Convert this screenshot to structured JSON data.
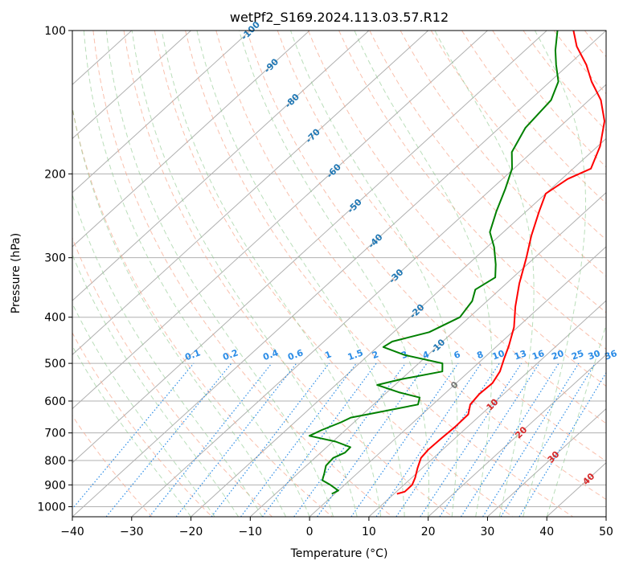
{
  "chart_data": {
    "type": "line",
    "subtype": "skew-t log-p",
    "title": "wetPf2_S169.2024.113.03.57.R12",
    "xlabel": "Temperature (°C)",
    "ylabel": "Pressure (hPa)",
    "xlim": [
      -40,
      50
    ],
    "ylim": [
      1050,
      100
    ],
    "y_scale": "log",
    "grid": true,
    "x_ticks": [
      -40,
      -30,
      -20,
      -10,
      0,
      10,
      20,
      30,
      40,
      50
    ],
    "y_ticks": [
      1000,
      900,
      800,
      700,
      600,
      500,
      400,
      300,
      200,
      100
    ],
    "isotherm_labels": [
      "-100",
      "-90",
      "-80",
      "-70",
      "-60",
      "-50",
      "-40",
      "-30",
      "-20",
      "-10",
      "0",
      "10",
      "20",
      "30",
      "40"
    ],
    "mixing_ratio_labels": [
      "0.1",
      "0.2",
      "0.4",
      "0.6",
      "1",
      "1.5",
      "2",
      "3",
      "4",
      "6",
      "8",
      "10",
      "13",
      "16",
      "20",
      "25",
      "30",
      "36"
    ],
    "series": [
      {
        "key": "temperature",
        "color": "#ff0000",
        "points": [
          {
            "p": 940,
            "t": 10.5
          },
          {
            "p": 930,
            "t": 11.4
          },
          {
            "p": 900,
            "t": 11.4
          },
          {
            "p": 870,
            "t": 10.6
          },
          {
            "p": 830,
            "t": 9.2
          },
          {
            "p": 790,
            "t": 7.9
          },
          {
            "p": 760,
            "t": 7.6
          },
          {
            "p": 720,
            "t": 7.7
          },
          {
            "p": 680,
            "t": 7.9
          },
          {
            "p": 640,
            "t": 7.8
          },
          {
            "p": 610,
            "t": 6.3
          },
          {
            "p": 580,
            "t": 5.9
          },
          {
            "p": 550,
            "t": 6.1
          },
          {
            "p": 520,
            "t": 5.2
          },
          {
            "p": 490,
            "t": 3.6
          },
          {
            "p": 460,
            "t": 2.0
          },
          {
            "p": 420,
            "t": -0.6
          },
          {
            "p": 380,
            "t": -4.2
          },
          {
            "p": 340,
            "t": -7.8
          },
          {
            "p": 300,
            "t": -11.4
          },
          {
            "p": 270,
            "t": -14.6
          },
          {
            "p": 240,
            "t": -17.8
          },
          {
            "p": 220,
            "t": -20.0
          },
          {
            "p": 205,
            "t": -19.0
          },
          {
            "p": 195,
            "t": -17.0
          },
          {
            "p": 175,
            "t": -19.6
          },
          {
            "p": 155,
            "t": -23.5
          },
          {
            "p": 140,
            "t": -28.0
          },
          {
            "p": 128,
            "t": -33.0
          },
          {
            "p": 118,
            "t": -37.0
          },
          {
            "p": 108,
            "t": -42.0
          },
          {
            "p": 100,
            "t": -45.5
          }
        ]
      },
      {
        "key": "dewpoint",
        "color": "#008000",
        "points": [
          {
            "p": 940,
            "t": -0.5
          },
          {
            "p": 925,
            "t": 0.0
          },
          {
            "p": 900,
            "t": -2.4
          },
          {
            "p": 880,
            "t": -4.6
          },
          {
            "p": 850,
            "t": -5.6
          },
          {
            "p": 820,
            "t": -6.7
          },
          {
            "p": 790,
            "t": -6.9
          },
          {
            "p": 770,
            "t": -5.9
          },
          {
            "p": 750,
            "t": -6.0
          },
          {
            "p": 730,
            "t": -9.5
          },
          {
            "p": 710,
            "t": -15.0
          },
          {
            "p": 690,
            "t": -14.0
          },
          {
            "p": 665,
            "t": -12.2
          },
          {
            "p": 650,
            "t": -11.4
          },
          {
            "p": 630,
            "t": -7.0
          },
          {
            "p": 610,
            "t": -2.5
          },
          {
            "p": 590,
            "t": -3.5
          },
          {
            "p": 575,
            "t": -8.0
          },
          {
            "p": 555,
            "t": -13.0
          },
          {
            "p": 540,
            "t": -10.0
          },
          {
            "p": 520,
            "t": -4.5
          },
          {
            "p": 500,
            "t": -6.0
          },
          {
            "p": 480,
            "t": -14.0
          },
          {
            "p": 462,
            "t": -19.0
          },
          {
            "p": 450,
            "t": -18.5
          },
          {
            "p": 430,
            "t": -14.0
          },
          {
            "p": 400,
            "t": -11.6
          },
          {
            "p": 370,
            "t": -12.5
          },
          {
            "p": 350,
            "t": -14.1
          },
          {
            "p": 330,
            "t": -13.0
          },
          {
            "p": 310,
            "t": -15.3
          },
          {
            "p": 285,
            "t": -18.8
          },
          {
            "p": 265,
            "t": -22.3
          },
          {
            "p": 240,
            "t": -25.0
          },
          {
            "p": 215,
            "t": -27.7
          },
          {
            "p": 195,
            "t": -30.3
          },
          {
            "p": 180,
            "t": -33.4
          },
          {
            "p": 160,
            "t": -35.6
          },
          {
            "p": 140,
            "t": -36.4
          },
          {
            "p": 128,
            "t": -38.6
          },
          {
            "p": 118,
            "t": -42.1
          },
          {
            "p": 110,
            "t": -44.9
          },
          {
            "p": 100,
            "t": -48.2
          }
        ]
      }
    ]
  }
}
